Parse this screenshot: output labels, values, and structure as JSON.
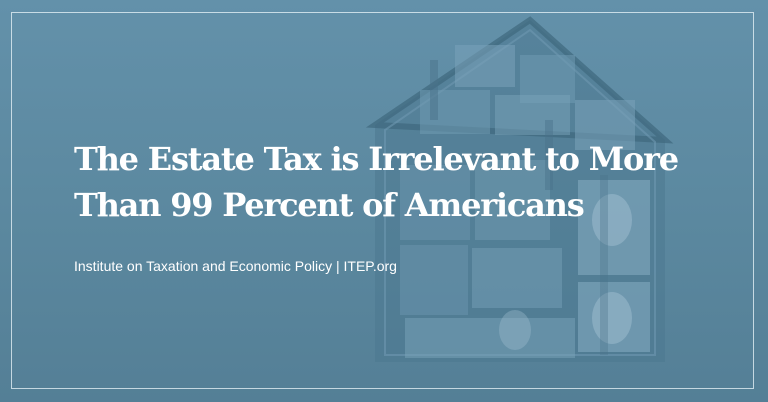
{
  "card": {
    "title_line1": "The Estate Tax is Irrelevant to More",
    "title_line2": "Than 99 Percent of Americans",
    "source_line": "Institute on Taxation and Economic Policy | ITEP.org"
  },
  "colors": {
    "background": "#5f8ba4",
    "text": "#ffffff",
    "frame": "#ebf5fa"
  }
}
